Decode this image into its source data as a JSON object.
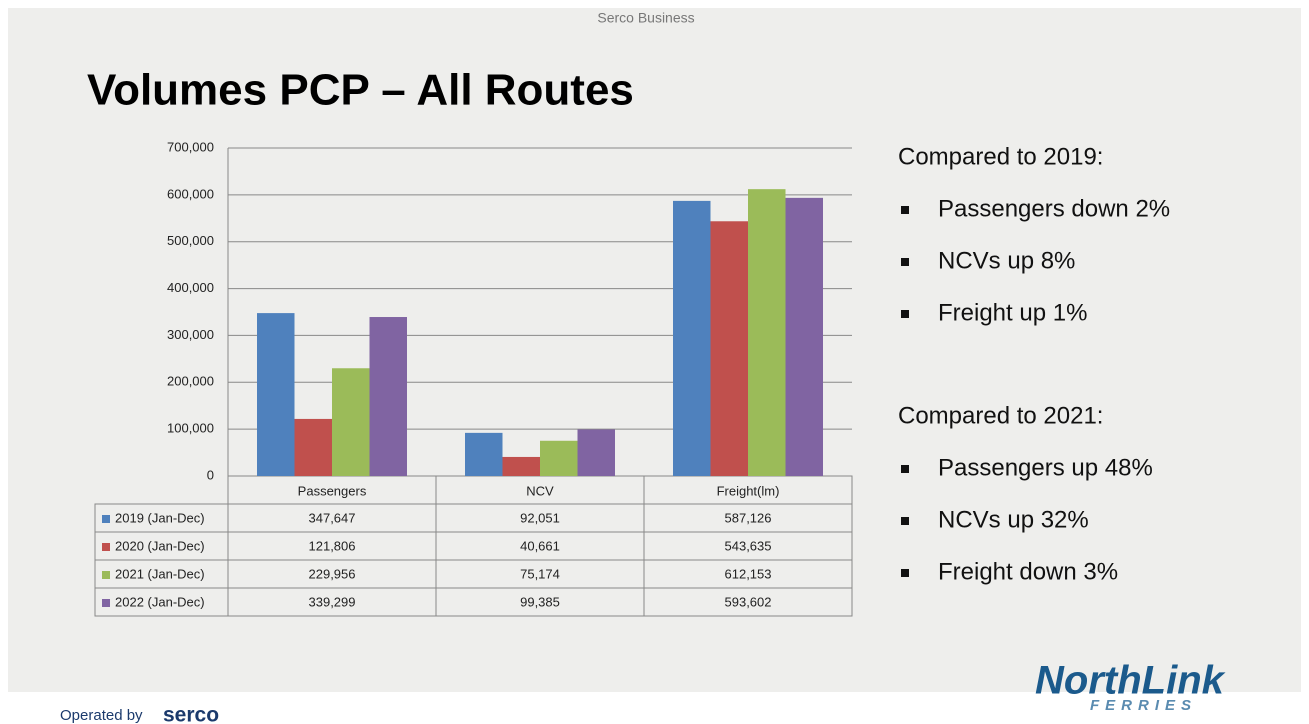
{
  "header": "Serco Business",
  "title": "Volumes PCP – All Routes",
  "chart_data": {
    "type": "bar",
    "categories": [
      "Passengers",
      "NCV",
      "Freight(lm)"
    ],
    "series": [
      {
        "name": "2019 (Jan-Dec)",
        "color": "#4f81bd",
        "values": [
          347647,
          92051,
          587126
        ],
        "value_labels": [
          "347,647",
          "92,051",
          "587,126"
        ]
      },
      {
        "name": "2020 (Jan-Dec)",
        "color": "#c0504d",
        "values": [
          121806,
          40661,
          543635
        ],
        "value_labels": [
          "121,806",
          "40,661",
          "543,635"
        ]
      },
      {
        "name": "2021 (Jan-Dec)",
        "color": "#9bbb59",
        "values": [
          229956,
          75174,
          612153
        ],
        "value_labels": [
          "229,956",
          "75,174",
          "612,153"
        ]
      },
      {
        "name": "2022 (Jan-Dec)",
        "color": "#8064a2",
        "values": [
          339299,
          99385,
          593602
        ],
        "value_labels": [
          "339,299",
          "99,385",
          "593,602"
        ]
      }
    ],
    "ylim": [
      0,
      700000
    ],
    "yticks": [
      0,
      {
        "value": 100000,
        "label": "100,000"
      },
      {
        "value": 200000,
        "label": "200,000"
      },
      {
        "value": 300000,
        "label": "300,000"
      },
      {
        "value": 400000,
        "label": "400,000"
      },
      {
        "value": 500000,
        "label": "500,000"
      },
      {
        "value": 600000,
        "label": "600,000"
      },
      {
        "value": 700000,
        "label": "700,000"
      }
    ],
    "grid": true
  },
  "comparisons": [
    {
      "heading": "Compared to 2019:",
      "items": [
        "Passengers down 2%",
        "NCVs up 8%",
        "Freight up 1%"
      ]
    },
    {
      "heading": "Compared to 2021:",
      "items": [
        "Passengers up 48%",
        "NCVs up 32%",
        "Freight down 3%"
      ]
    }
  ],
  "logo": {
    "name": "NorthLink",
    "sub": "FERRIES"
  },
  "footer": {
    "prefix": "Operated by",
    "brand": "serco"
  }
}
